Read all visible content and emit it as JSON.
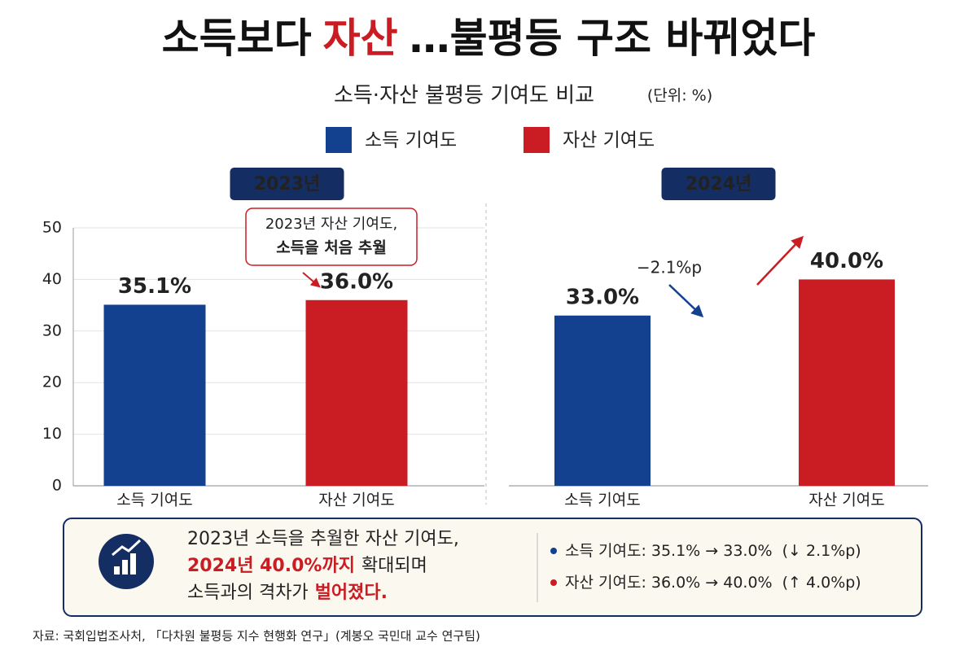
{
  "header": {
    "title": [
      "소득보다",
      "자산",
      "…불평등 구조 바뀌었다"
    ],
    "subtitle": "소득·자산 불평등 기여도 비교",
    "unit": "(단위: %)"
  },
  "legend": [
    {
      "name": "소득 기여도",
      "color": "#13408f"
    },
    {
      "name": "자산 기여도",
      "color": "#c91c23"
    }
  ],
  "chart_data": [
    {
      "type": "bar",
      "title": "2023년",
      "categories": [
        "소득 기여도",
        "자산 기여도"
      ],
      "values": [
        35.1,
        36.0
      ],
      "value_labels": [
        "35.1%",
        "36.0%"
      ],
      "colors": [
        "#13408f",
        "#c91c23"
      ],
      "ylim": [
        0,
        50
      ],
      "yticks": [
        0,
        10,
        20,
        30,
        40,
        50
      ],
      "grid": true,
      "annotation": [
        "2023년 자산 기여도,",
        "소득을 처음 추월"
      ]
    },
    {
      "type": "bar",
      "title": "2024년",
      "categories": [
        "소득 기여도",
        "자산 기여도"
      ],
      "values": [
        33.0,
        40.0
      ],
      "value_labels": [
        "33.0%",
        "40.0%"
      ],
      "colors": [
        "#13408f",
        "#c91c23"
      ],
      "ylim": [
        0,
        50
      ],
      "grid": false,
      "annotation": [
        "−2.1%p"
      ]
    }
  ],
  "summary": {
    "lines": [
      [
        {
          "text": "2023년 소득을 추월한 자산 기여도,",
          "accent": false
        }
      ],
      [
        {
          "text": "2024년 40.0%까지",
          "accent": true
        },
        {
          "text": "확대되며",
          "accent": false
        }
      ],
      [
        {
          "text": "소득과의 격차가",
          "accent": false
        },
        {
          "text": "벌어졌다.",
          "accent": true
        }
      ]
    ],
    "bullets": [
      {
        "text": "소득 기여도: 35.1% → 33.0%",
        "change": "(↓ 2.1%p)",
        "color": "#13408f"
      },
      {
        "text": "자산 기여도: 36.0% → 40.0%",
        "change": "(↑ 4.0%p)",
        "color": "#c91c23"
      }
    ]
  },
  "source": "자료: 국회입법조사처, 「다차원 불평등 지수 현행화 연구」(계봉오 국민대 교수 연구팀)"
}
